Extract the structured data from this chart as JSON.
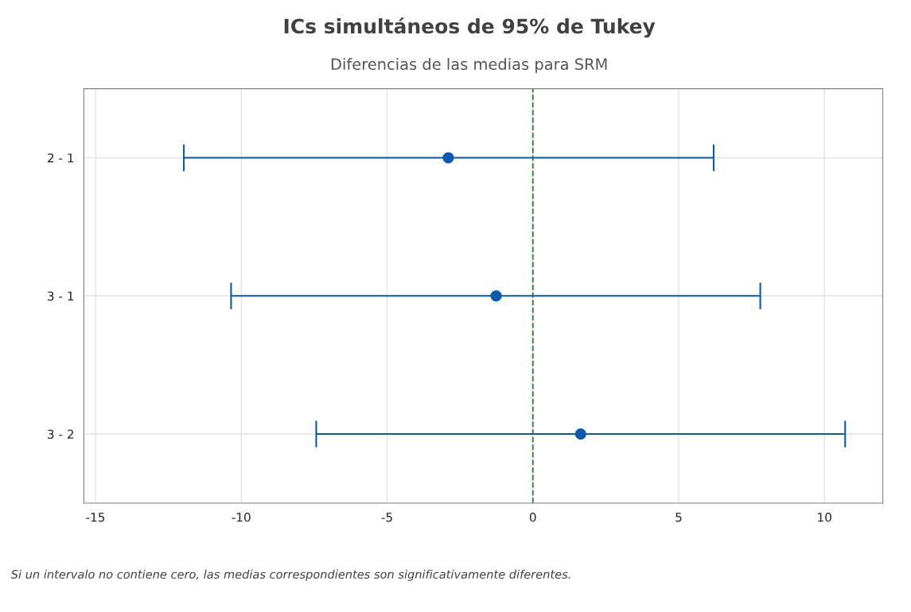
{
  "chart_data": {
    "type": "scatter",
    "orientation": "horizontal",
    "title": "ICs simultáneos de 95% de Tukey",
    "subtitle": "Diferencias de las medias para SRM",
    "categories": [
      "2 - 1",
      "3 - 1",
      "3 - 2"
    ],
    "values": [
      -2.9,
      -1.26,
      1.64
    ],
    "errors": [
      [
        -11.97,
        6.2
      ],
      [
        -10.35,
        7.8
      ],
      [
        -7.43,
        10.71
      ]
    ],
    "color": "#0a5bb0",
    "xlim": [
      -15.4,
      12.0
    ],
    "xticks": [
      -15,
      -10,
      -5,
      0,
      5,
      10
    ],
    "ref_lines": [
      {
        "axis": "x",
        "value": 0,
        "color": "#1a8a1a",
        "line_style": "dashed"
      }
    ],
    "grid": true,
    "marker": "circle",
    "annotations": [
      "Si un intervalo no contiene cero, las medias correspondientes son significativamente diferentes."
    ]
  }
}
